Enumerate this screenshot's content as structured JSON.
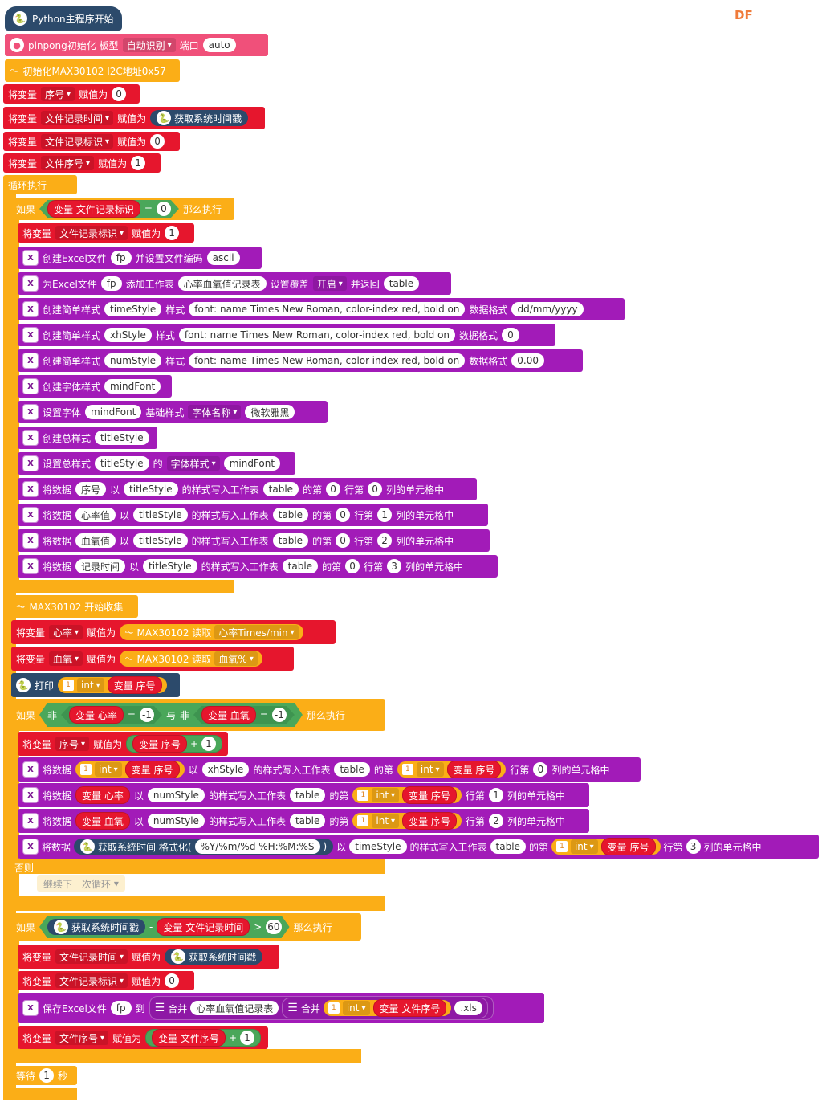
{
  "watermark": "DF",
  "start": {
    "label": "Python主程序开始"
  },
  "pinpong": {
    "label": "pinpong初始化 板型",
    "board": "自动识别",
    "port_label": "端口",
    "port": "auto"
  },
  "max_init": {
    "label": "初始化MAX30102 I2C地址0x57"
  },
  "assign_label": "将变量",
  "set_to": "赋值为",
  "vars": {
    "seq": "序号",
    "file_time": "文件记录时间",
    "file_flag": "文件记录标识",
    "file_no": "文件序号",
    "heart": "心率",
    "oxygen": "血氧"
  },
  "values": {
    "zero": "0",
    "one": "1",
    "neg_one": "-1",
    "two": "2",
    "three": "3",
    "sixty": "60"
  },
  "get_timestamp": "获取系统时间戳",
  "loop": {
    "label": "循环执行"
  },
  "if_label": "如果",
  "then_label": "那么执行",
  "else_label": "否则",
  "var_prefix": "变量",
  "eq": "=",
  "gt": ">",
  "minus": "-",
  "plus": "+",
  "not_label": "非",
  "and_label": "与",
  "excel": {
    "create": "创建Excel文件",
    "fp": "fp",
    "set_encoding": "并设置文件编码",
    "encoding": "ascii",
    "for_file": "为Excel文件",
    "add_sheet": "添加工作表",
    "sheet_name": "心率血氧值记录表",
    "overwrite": "设置覆盖",
    "on": "开启",
    "and_return": "并返回",
    "table": "table",
    "create_style": "创建简单样式",
    "style": "样式",
    "data_format": "数据格式",
    "style_font": "font: name Times New Roman, color-index red, bold on",
    "timeStyle": "timeStyle",
    "xhStyle": "xhStyle",
    "numStyle": "numStyle",
    "fmt_date": "dd/mm/yyyy",
    "fmt_zero": "0",
    "fmt_dec": "0.00",
    "create_font": "创建字体样式",
    "mindFont": "mindFont",
    "set_font": "设置字体",
    "base_style": "基础样式",
    "font_name": "字体名称",
    "font_val": "微软雅黑",
    "create_total": "创建总样式",
    "titleStyle": "titleStyle",
    "set_total": "设置总样式",
    "of": "的",
    "font_style": "字体样式",
    "write_data": "将数据",
    "with": "以",
    "style_write": "的样式写入工作表",
    "the": "的第",
    "row": "行第",
    "cell": "列的单元格中",
    "h_seq": "序号",
    "h_heart": "心率值",
    "h_oxy": "血氧值",
    "h_time": "记录时间",
    "save": "保存Excel文件",
    "to": "到",
    "concat": "合并",
    "ext": ".xls"
  },
  "max_collect": {
    "label": "MAX30102 开始收集"
  },
  "max_read": {
    "label": "MAX30102 读取",
    "heart_opt": "心率Times/min",
    "oxy_opt": "血氧%"
  },
  "print": {
    "label": "打印",
    "type": "int"
  },
  "time_fmt": {
    "label": "获取系统时间 格式化(",
    "fmt": "%Y/%m/%d %H:%M:%S",
    "close": ")"
  },
  "continue": "继续下一次循环",
  "wait": {
    "label": "等待",
    "value": "1",
    "unit": "秒"
  }
}
